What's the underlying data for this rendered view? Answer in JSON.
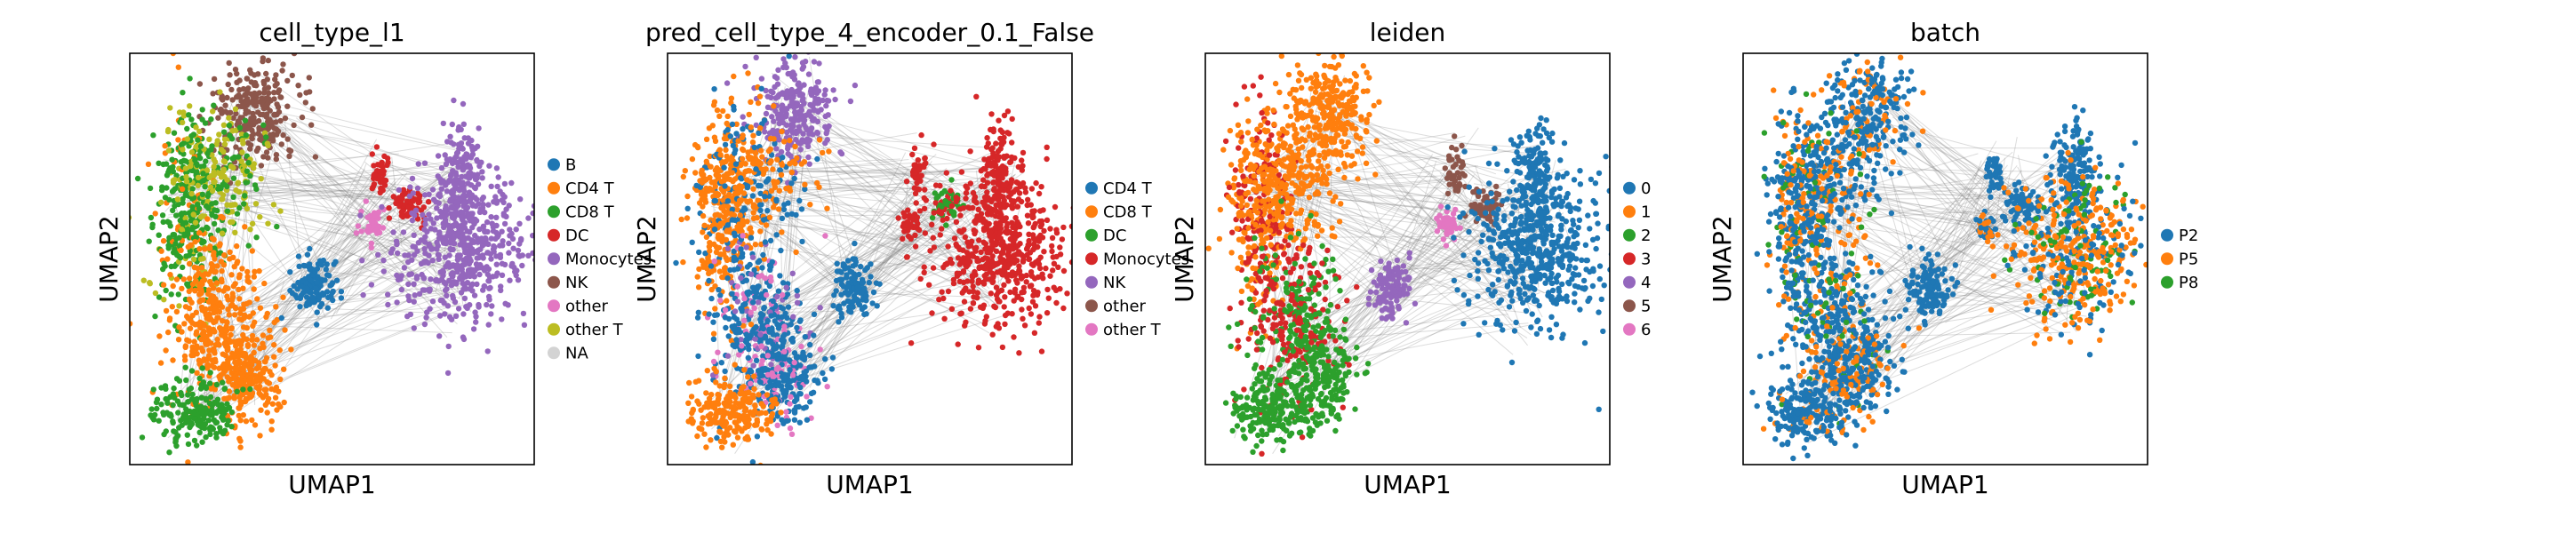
{
  "figure": {
    "panels": [
      {
        "title": "cell_type_l1",
        "xlabel": "UMAP1",
        "ylabel": "UMAP2",
        "legend": [
          "B",
          "CD4 T",
          "CD8 T",
          "DC",
          "Monocytes",
          "NK",
          "other",
          "other T",
          "NA"
        ],
        "colors": [
          "#1f77b4",
          "#ff7f0e",
          "#2ca02c",
          "#d62728",
          "#9467bd",
          "#8c564b",
          "#e377c2",
          "#bcbd22",
          "#d3d3d3"
        ],
        "coloring": "cell_type_l1"
      },
      {
        "title": "pred_cell_type_4_encoder_0.1_False",
        "xlabel": "UMAP1",
        "ylabel": "UMAP2",
        "legend": [
          "CD4 T",
          "CD8 T",
          "DC",
          "Monocytes",
          "NK",
          "other",
          "other T"
        ],
        "colors": [
          "#1f77b4",
          "#ff7f0e",
          "#2ca02c",
          "#d62728",
          "#9467bd",
          "#8c564b",
          "#e377c2"
        ],
        "coloring": "pred"
      },
      {
        "title": "leiden",
        "xlabel": "UMAP1",
        "ylabel": "UMAP2",
        "legend": [
          "0",
          "1",
          "2",
          "3",
          "4",
          "5",
          "6"
        ],
        "colors": [
          "#1f77b4",
          "#ff7f0e",
          "#2ca02c",
          "#d62728",
          "#9467bd",
          "#8c564b",
          "#e377c2"
        ],
        "coloring": "leiden"
      },
      {
        "title": "batch",
        "xlabel": "UMAP1",
        "ylabel": "UMAP2",
        "legend": [
          "P2",
          "P5",
          "P8"
        ],
        "colors": [
          "#1f77b4",
          "#ff7f0e",
          "#2ca02c"
        ],
        "coloring": "batch"
      }
    ]
  },
  "chart_data": [
    {
      "type": "scatter",
      "title": "cell_type_l1",
      "xlabel": "UMAP1",
      "ylabel": "UMAP2",
      "legend": [
        "B",
        "CD4 T",
        "CD8 T",
        "DC",
        "Monocytes",
        "NK",
        "other",
        "other T",
        "NA"
      ],
      "grid": false,
      "legend_position": "right"
    },
    {
      "type": "scatter",
      "title": "pred_cell_type_4_encoder_0.1_False",
      "xlabel": "UMAP1",
      "ylabel": "UMAP2",
      "legend": [
        "CD4 T",
        "CD8 T",
        "DC",
        "Monocytes",
        "NK",
        "other",
        "other T"
      ],
      "grid": false,
      "legend_position": "right"
    },
    {
      "type": "scatter",
      "title": "leiden",
      "xlabel": "UMAP1",
      "ylabel": "UMAP2",
      "legend": [
        "0",
        "1",
        "2",
        "3",
        "4",
        "5",
        "6"
      ],
      "grid": false,
      "legend_position": "right"
    },
    {
      "type": "scatter",
      "title": "batch",
      "xlabel": "UMAP1",
      "ylabel": "UMAP2",
      "legend": [
        "P2",
        "P5",
        "P8"
      ],
      "grid": false,
      "legend_position": "right"
    }
  ]
}
